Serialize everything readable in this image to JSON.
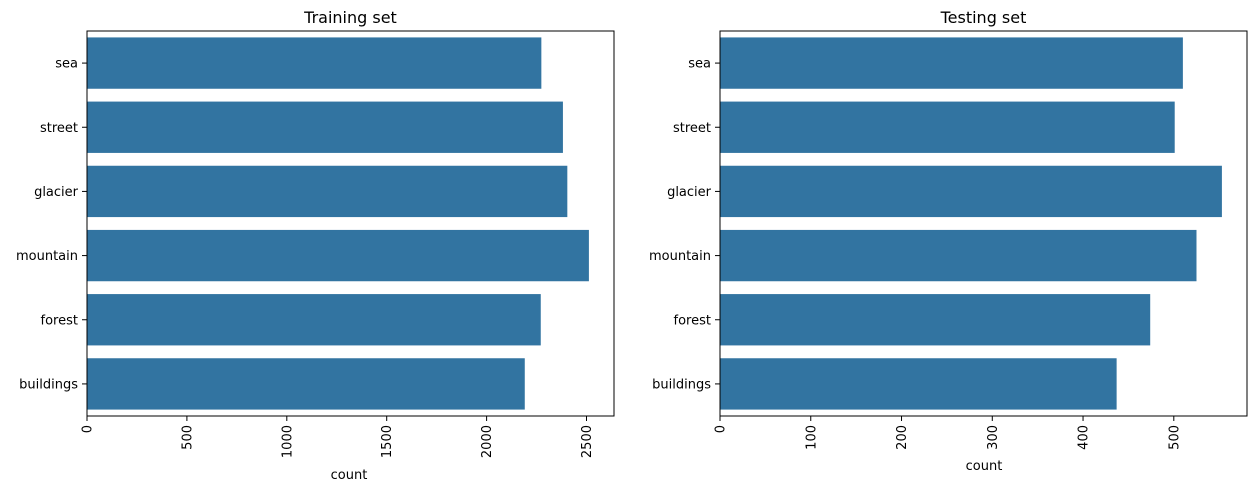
{
  "chart_data": [
    {
      "type": "bar",
      "orientation": "horizontal",
      "title": "Training set",
      "xlabel": "count",
      "ylabel": "",
      "categories": [
        "sea",
        "street",
        "glacier",
        "mountain",
        "forest",
        "buildings"
      ],
      "values": [
        2274,
        2382,
        2404,
        2512,
        2271,
        2191
      ],
      "xlim": [
        0,
        2637.6
      ],
      "xticks": [
        0,
        500,
        1000,
        1500,
        2000,
        2500
      ],
      "xtick_rotation": 90,
      "grid": false,
      "bar_color": "#3274a1"
    },
    {
      "type": "bar",
      "orientation": "horizontal",
      "title": "Testing set",
      "xlabel": "count",
      "ylabel": "",
      "categories": [
        "sea",
        "street",
        "glacier",
        "mountain",
        "forest",
        "buildings"
      ],
      "values": [
        510,
        501,
        553,
        525,
        474,
        437
      ],
      "xlim": [
        0,
        580.65
      ],
      "xticks": [
        0,
        100,
        200,
        300,
        400,
        500
      ],
      "xtick_rotation": 90,
      "grid": false,
      "bar_color": "#3274a1"
    }
  ]
}
